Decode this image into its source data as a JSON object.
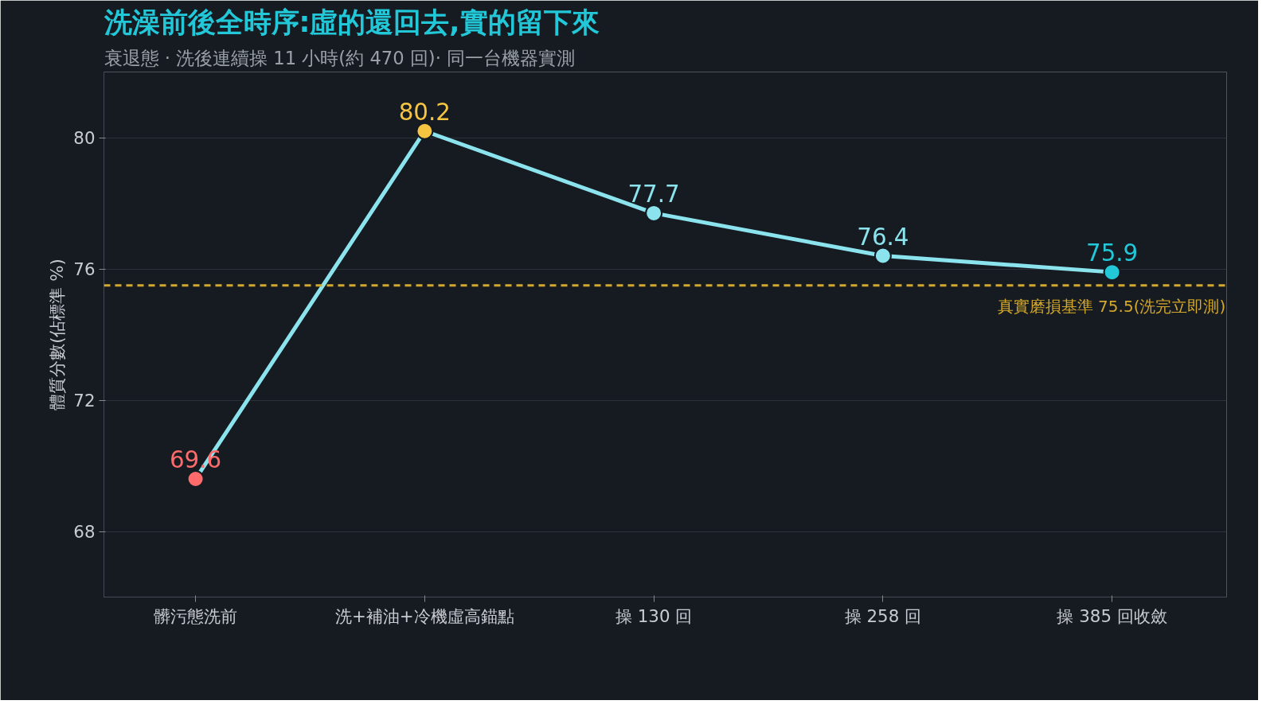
{
  "chart_data": {
    "type": "line",
    "title": "洗澡前後全時序:虛的還回去,實的留下來",
    "subtitle": "衰退態 · 洗後連續操 11 小時(約 470 回)· 同一台機器實測",
    "ylabel": "體質分數(佔標準 %)",
    "categories": [
      "髒污態洗前",
      "洗+補油+冷機虛高錨點",
      "操 130 回",
      "操 258 回",
      "操 385 回收斂"
    ],
    "series": [
      {
        "color": "#8be3ee",
        "colors": [
          "#ff6b6b",
          "#f5c542",
          "#8be3ee",
          "#8be3ee",
          "#22c7d8"
        ],
        "values": [
          69.6,
          80.2,
          77.7,
          76.4,
          75.9
        ]
      }
    ],
    "ylim": [
      66,
      82
    ],
    "yticks": [
      68,
      72,
      76,
      80
    ],
    "grid": "y",
    "marker": "circle",
    "line_style": "solid",
    "data_labels": true,
    "ref_lines": [
      {
        "axis": "y",
        "value": 75.5,
        "label": "真實磨損基準 75.5(洗完立即測)",
        "color": "#d4a82a",
        "line_style": "dashed"
      }
    ]
  }
}
